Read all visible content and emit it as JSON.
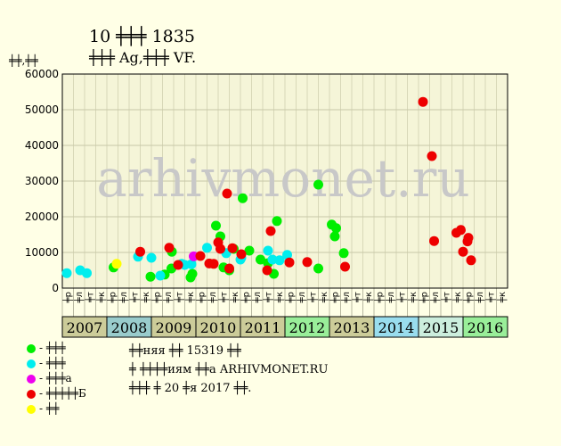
{
  "title": "10 ╪╪╪ 1835",
  "subtitle": "╪╪╪ Ag,╪╪╪ VF.",
  "unit_label": "╪╪,╪╪",
  "watermark": "arhivmonet.ru",
  "legend": [
    {
      "label": "- ╪╪╪",
      "color": "#00ee00"
    },
    {
      "label": "- ╪╪╪",
      "color": "#00eeee"
    },
    {
      "label": "- ╪╪╪а",
      "color": "#ee00ee"
    },
    {
      "label": "- ╪╪╪╪╪Б",
      "color": "#ee0000"
    },
    {
      "label": "- ╪╪",
      "color": "#ffff00"
    }
  ],
  "info_lines": [
    "╪╪няя ╪╪ 15319 ╪╪",
    "╪ ╪╪╪╪иям ╪╪а ARHIVMONET.RU",
    "╪╪╪ ╪ 20 ╪я 2017 ╪╪."
  ],
  "chart_data": {
    "type": "scatter",
    "ylim": [
      0,
      60000
    ],
    "y_ticks": [
      "0",
      "10000",
      "20000",
      "30000",
      "40000",
      "50000",
      "60000"
    ],
    "grid": true,
    "month_labels": [
      "╪р",
      "╪л",
      "╪т",
      "╪к"
    ],
    "year_labels": [
      "2007",
      "2008",
      "2009",
      "2010",
      "2011",
      "2012",
      "2013",
      "2014",
      "2015",
      "2016"
    ],
    "year_colors": [
      "#cccc99",
      "#99cccc",
      "#cccc99",
      "#cccc99",
      "#cccc99",
      "#99ee99",
      "#cccc99",
      "#99ddee",
      "#cceedd",
      "#99ee99"
    ],
    "x_range": [
      2007.0,
      2017.0
    ],
    "series": [
      {
        "color": "#00ee00",
        "points": [
          [
            2008.15,
            5800
          ],
          [
            2008.98,
            3200
          ],
          [
            2009.3,
            3800
          ],
          [
            2009.45,
            5500
          ],
          [
            2009.46,
            10200
          ],
          [
            2009.88,
            3000
          ],
          [
            2009.92,
            4000
          ],
          [
            2010.45,
            17500
          ],
          [
            2010.55,
            14500
          ],
          [
            2010.62,
            5800
          ],
          [
            2010.75,
            5000
          ],
          [
            2010.85,
            11000
          ],
          [
            2011.05,
            25200
          ],
          [
            2011.2,
            10500
          ],
          [
            2011.45,
            8000
          ],
          [
            2011.62,
            7000
          ],
          [
            2011.75,
            4000
          ],
          [
            2011.82,
            18800
          ],
          [
            2012.75,
            29000
          ],
          [
            2012.75,
            5500
          ],
          [
            2013.05,
            17800
          ],
          [
            2013.12,
            14500
          ],
          [
            2013.15,
            16800
          ],
          [
            2013.32,
            9800
          ]
        ]
      },
      {
        "color": "#00eeee",
        "points": [
          [
            2007.1,
            4200
          ],
          [
            2007.4,
            5000
          ],
          [
            2007.55,
            4200
          ],
          [
            2008.7,
            8800
          ],
          [
            2009.0,
            8500
          ],
          [
            2009.2,
            3500
          ],
          [
            2009.68,
            6800
          ],
          [
            2009.75,
            6500
          ],
          [
            2009.9,
            6700
          ],
          [
            2010.25,
            11300
          ],
          [
            2010.68,
            9800
          ],
          [
            2011.0,
            8000
          ],
          [
            2011.02,
            8500
          ],
          [
            2011.62,
            10500
          ],
          [
            2011.72,
            8000
          ],
          [
            2011.88,
            7800
          ],
          [
            2012.05,
            9300
          ]
        ]
      },
      {
        "color": "#ee00ee",
        "points": [
          [
            2009.95,
            8900
          ]
        ]
      },
      {
        "color": "#ee0000",
        "points": [
          [
            2008.75,
            10200
          ],
          [
            2009.4,
            11300
          ],
          [
            2009.6,
            6500
          ],
          [
            2010.1,
            9000
          ],
          [
            2010.3,
            6900
          ],
          [
            2010.4,
            6800
          ],
          [
            2010.5,
            12800
          ],
          [
            2010.55,
            11000
          ],
          [
            2010.7,
            26500
          ],
          [
            2010.75,
            5500
          ],
          [
            2010.82,
            11200
          ],
          [
            2011.02,
            9500
          ],
          [
            2011.6,
            5000
          ],
          [
            2011.68,
            16000
          ],
          [
            2012.1,
            7200
          ],
          [
            2012.5,
            7300
          ],
          [
            2013.35,
            6000
          ],
          [
            2015.1,
            52200
          ],
          [
            2015.3,
            37000
          ],
          [
            2015.35,
            13200
          ],
          [
            2015.85,
            15500
          ],
          [
            2015.95,
            16300
          ],
          [
            2016.0,
            10200
          ],
          [
            2016.1,
            13100
          ],
          [
            2016.12,
            14100
          ],
          [
            2016.18,
            7800
          ]
        ]
      },
      {
        "color": "#ffff00",
        "points": [
          [
            2008.22,
            6800
          ]
        ]
      }
    ]
  }
}
